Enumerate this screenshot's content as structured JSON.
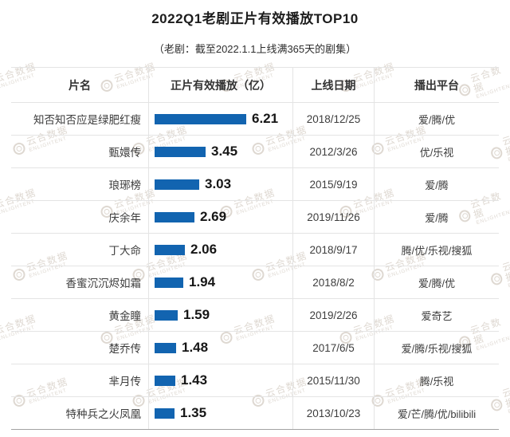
{
  "title": "2022Q1老剧正片有效播放TOP10",
  "subtitle": "（老剧：截至2022.1.1上线满365天的剧集）",
  "watermark": {
    "brand": "云合数据",
    "brand_en": "ENLIGHTENT"
  },
  "colors": {
    "bar": "#1264b0"
  },
  "table": {
    "headers": [
      "片名",
      "正片有效播放（亿）",
      "上线日期",
      "播出平台"
    ],
    "rows": [
      {
        "name": "知否知否应是绿肥红瘦",
        "value": "6.21",
        "date": "2018/12/25",
        "platforms": "爱/腾/优"
      },
      {
        "name": "甄嬛传",
        "value": "3.45",
        "date": "2012/3/26",
        "platforms": "优/乐视"
      },
      {
        "name": "琅琊榜",
        "value": "3.03",
        "date": "2015/9/19",
        "platforms": "爱/腾"
      },
      {
        "name": "庆余年",
        "value": "2.69",
        "date": "2019/11/26",
        "platforms": "爱/腾"
      },
      {
        "name": "丁大命",
        "value": "2.06",
        "date": "2018/9/17",
        "platforms": "腾/优/乐视/搜狐"
      },
      {
        "name": "香蜜沉沉烬如霜",
        "value": "1.94",
        "date": "2018/8/2",
        "platforms": "爱/腾/优"
      },
      {
        "name": "黄金瞳",
        "value": "1.59",
        "date": "2019/2/26",
        "platforms": "爱奇艺"
      },
      {
        "name": "楚乔传",
        "value": "1.48",
        "date": "2017/6/5",
        "platforms": "爱/腾/乐视/搜狐"
      },
      {
        "name": "芈月传",
        "value": "1.43",
        "date": "2015/11/30",
        "platforms": "腾/乐视"
      },
      {
        "name": "特种兵之火凤凰",
        "value": "1.35",
        "date": "2013/10/23",
        "platforms": "爱/芒/腾/优/bilibili"
      }
    ]
  },
  "chart_data": {
    "type": "bar",
    "orientation": "horizontal",
    "title": "2022Q1老剧正片有效播放TOP10",
    "subtitle": "（老剧：截至2022.1.1上线满365天的剧集）",
    "categories": [
      "知否知否应是绿肥红瘦",
      "甄嬛传",
      "琅琊榜",
      "庆余年",
      "丁大命",
      "香蜜沉沉烬如霜",
      "黄金瞳",
      "楚乔传",
      "芈月传",
      "特种兵之火凤凰"
    ],
    "values": [
      6.21,
      3.45,
      3.03,
      2.69,
      2.06,
      1.94,
      1.59,
      1.48,
      1.43,
      1.35
    ],
    "value_label": "正片有效播放（亿）",
    "value_unit": "亿",
    "release_dates": [
      "2018/12/25",
      "2012/3/26",
      "2015/9/19",
      "2019/11/26",
      "2018/9/17",
      "2018/8/2",
      "2019/2/26",
      "2017/6/5",
      "2015/11/30",
      "2013/10/23"
    ],
    "platforms": [
      "爱/腾/优",
      "优/乐视",
      "爱/腾",
      "爱/腾",
      "腾/优/乐视/搜狐",
      "爱/腾/优",
      "爱奇艺",
      "爱/腾/乐视/搜狐",
      "腾/乐视",
      "爱/芒/腾/优/bilibili"
    ],
    "xlim": [
      0,
      6.21
    ],
    "grid": false,
    "legend": "none",
    "bar_color": "#1264b0"
  }
}
